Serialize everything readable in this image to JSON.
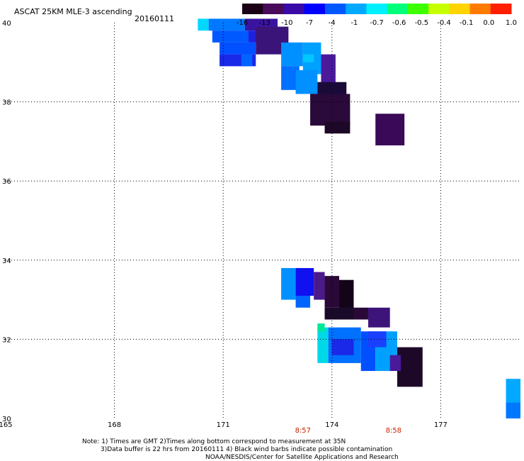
{
  "chart_data": {
    "type": "heatmap",
    "title": "ASCAT 25KM MLE-3 ascending",
    "date": "20160111",
    "xlim": [
      165,
      179.2
    ],
    "ylim": [
      30,
      40
    ],
    "x_ticks": [
      165,
      168,
      171,
      174,
      177
    ],
    "y_ticks": [
      40,
      38,
      36,
      34,
      32,
      30
    ],
    "grid": true,
    "colorbar": {
      "labels": [
        "-16",
        "-13",
        "-10",
        "-7",
        "-4",
        "-1",
        "-0.7",
        "-0.6",
        "-0.5",
        "-0.4",
        "-0.1",
        "0.0",
        "1.0"
      ],
      "colors": [
        "#1a0014",
        "#4a0a5a",
        "#3a0aa8",
        "#0000ff",
        "#0058ff",
        "#00a8ff",
        "#00f0ff",
        "#00ff7a",
        "#3cff00",
        "#c8ff00",
        "#ffd400",
        "#ff7a00",
        "#ff1e00"
      ]
    },
    "time_labels": [
      {
        "text": "8:57",
        "x": 173.2
      },
      {
        "text": "8:58",
        "x": 175.7
      }
    ],
    "cells": [
      {
        "x": 170.3,
        "y": 39.8,
        "w": 0.3,
        "h": 0.3,
        "color": "#00d8ff"
      },
      {
        "x": 170.6,
        "y": 39.8,
        "w": 1.0,
        "h": 0.3,
        "color": "#0078ff"
      },
      {
        "x": 171.6,
        "y": 39.8,
        "w": 0.9,
        "h": 0.3,
        "color": "#3a14a0"
      },
      {
        "x": 170.7,
        "y": 39.5,
        "w": 1.0,
        "h": 0.3,
        "color": "#0058ff"
      },
      {
        "x": 171.7,
        "y": 39.5,
        "w": 0.8,
        "h": 0.3,
        "color": "#2020e0"
      },
      {
        "x": 170.9,
        "y": 39.2,
        "w": 1.0,
        "h": 0.3,
        "color": "#0050ff"
      },
      {
        "x": 171.9,
        "y": 39.2,
        "w": 0.9,
        "h": 0.7,
        "color": "#3a1478"
      },
      {
        "x": 170.9,
        "y": 38.9,
        "w": 1.0,
        "h": 0.3,
        "color": "#1a28e8"
      },
      {
        "x": 171.5,
        "y": 38.9,
        "w": 0.3,
        "h": 0.3,
        "color": "#0064ff"
      },
      {
        "x": 172.6,
        "y": 38.9,
        "w": 0.6,
        "h": 0.6,
        "color": "#0090ff"
      },
      {
        "x": 173.2,
        "y": 38.7,
        "w": 0.5,
        "h": 0.8,
        "color": "#00a0ff"
      },
      {
        "x": 173.2,
        "y": 39.0,
        "w": 0.3,
        "h": 0.2,
        "color": "#00c8ff"
      },
      {
        "x": 173.7,
        "y": 38.4,
        "w": 0.4,
        "h": 0.8,
        "color": "#4a1a9a"
      },
      {
        "x": 172.6,
        "y": 38.3,
        "w": 0.5,
        "h": 0.6,
        "color": "#0070ff"
      },
      {
        "x": 173.0,
        "y": 38.2,
        "w": 0.6,
        "h": 0.6,
        "color": "#0090ff"
      },
      {
        "x": 173.6,
        "y": 38.1,
        "w": 0.8,
        "h": 0.4,
        "color": "#1a0a38"
      },
      {
        "x": 173.4,
        "y": 37.4,
        "w": 1.1,
        "h": 0.8,
        "color": "#2a0a3a"
      },
      {
        "x": 173.8,
        "y": 37.2,
        "w": 0.7,
        "h": 0.3,
        "color": "#1e0828"
      },
      {
        "x": 175.2,
        "y": 36.9,
        "w": 0.8,
        "h": 0.8,
        "color": "#3a0a58"
      },
      {
        "x": 172.6,
        "y": 33.0,
        "w": 0.4,
        "h": 0.8,
        "color": "#0090ff"
      },
      {
        "x": 173.0,
        "y": 33.1,
        "w": 0.5,
        "h": 0.7,
        "color": "#1010f0"
      },
      {
        "x": 173.5,
        "y": 33.0,
        "w": 0.3,
        "h": 0.7,
        "color": "#4a1a8a"
      },
      {
        "x": 173.8,
        "y": 32.8,
        "w": 0.4,
        "h": 0.8,
        "color": "#2a0838"
      },
      {
        "x": 174.2,
        "y": 32.7,
        "w": 0.4,
        "h": 0.8,
        "color": "#140418"
      },
      {
        "x": 173.0,
        "y": 32.8,
        "w": 0.4,
        "h": 0.3,
        "color": "#0064ff"
      },
      {
        "x": 173.8,
        "y": 32.5,
        "w": 0.8,
        "h": 0.3,
        "color": "#1a0a2a"
      },
      {
        "x": 174.6,
        "y": 32.5,
        "w": 0.4,
        "h": 0.3,
        "color": "#2a0838"
      },
      {
        "x": 175.0,
        "y": 32.3,
        "w": 0.6,
        "h": 0.5,
        "color": "#3c147a"
      },
      {
        "x": 173.6,
        "y": 31.4,
        "w": 0.3,
        "h": 0.9,
        "color": "#00d8e8"
      },
      {
        "x": 173.6,
        "y": 32.2,
        "w": 0.2,
        "h": 0.2,
        "color": "#00e898"
      },
      {
        "x": 173.9,
        "y": 31.4,
        "w": 0.9,
        "h": 0.9,
        "color": "#0070ff"
      },
      {
        "x": 174.0,
        "y": 31.6,
        "w": 0.6,
        "h": 0.4,
        "color": "#1a28e8"
      },
      {
        "x": 174.8,
        "y": 31.2,
        "w": 0.4,
        "h": 1.0,
        "color": "#0050ff"
      },
      {
        "x": 175.2,
        "y": 31.2,
        "w": 0.6,
        "h": 1.0,
        "color": "#00a0ff"
      },
      {
        "x": 175.0,
        "y": 31.8,
        "w": 0.5,
        "h": 0.4,
        "color": "#1a40ff"
      },
      {
        "x": 175.8,
        "y": 30.8,
        "w": 0.7,
        "h": 1.0,
        "color": "#1e0828"
      },
      {
        "x": 175.6,
        "y": 31.2,
        "w": 0.3,
        "h": 0.4,
        "color": "#4a1a9a"
      },
      {
        "x": 178.8,
        "y": 30.0,
        "w": 0.4,
        "h": 1.0,
        "color": "#00a8ff"
      },
      {
        "x": 178.8,
        "y": 30.0,
        "w": 0.4,
        "h": 0.4,
        "color": "#0078ff"
      }
    ]
  },
  "notes": [
    "Note: 1) Times are GMT 2)Times along bottom correspond to measurement at 35N",
    "3)Data buffer is 22 hrs from 20160111 4) Black wind barbs indicate possible contamination",
    "NOAA/NESDIS/Center for Satellite Applications and Research"
  ]
}
